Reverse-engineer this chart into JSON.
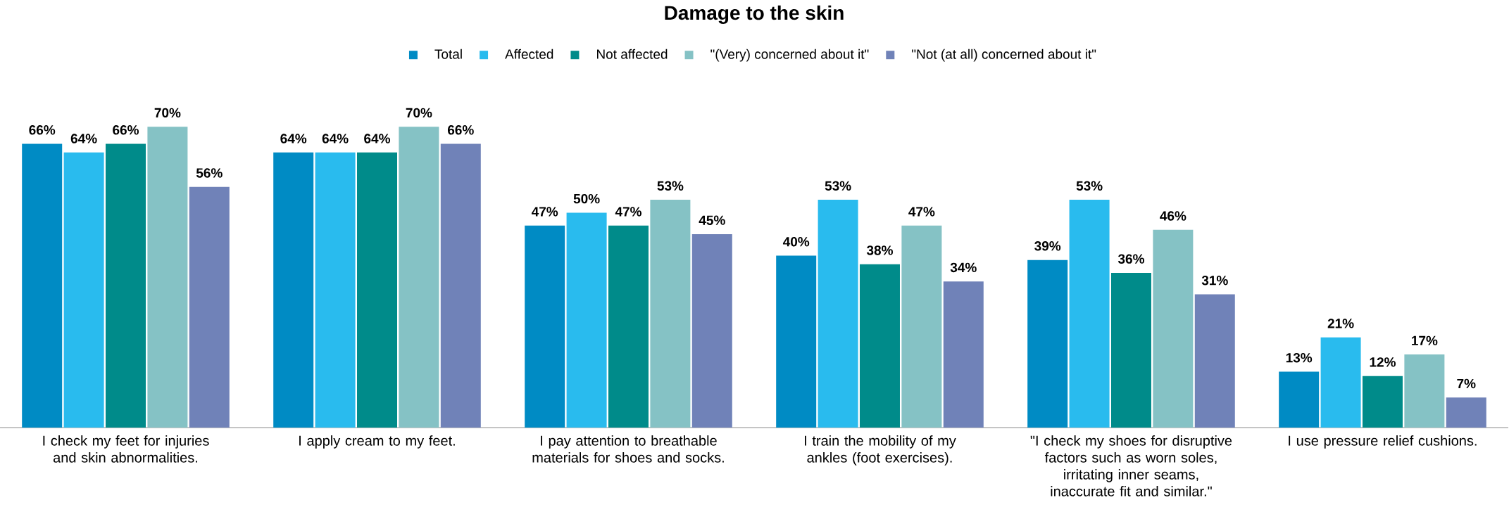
{
  "chart_data": {
    "type": "bar",
    "title": "Damage to the skin",
    "categories": [
      "I check my feet for injuries and skin abnormalities.",
      "I apply cream to my feet.",
      "I pay attention to breathable materials for shoes and socks.",
      "I train the mobility of my ankles (foot exercises).",
      "\"I check my shoes for disruptive factors such as worn soles, irritating inner seams, inaccurate fit and similar.\"",
      "I use pressure relief cushions."
    ],
    "series": [
      {
        "name": "Total",
        "color": "#008bc4",
        "values": [
          66,
          64,
          47,
          40,
          39,
          13
        ],
        "value_labels": [
          "66%",
          "64%",
          "47%",
          "40%",
          "39%",
          "13%"
        ]
      },
      {
        "name": "Affected",
        "color": "#29bbee",
        "values": [
          64,
          64,
          50,
          53,
          53,
          21
        ],
        "value_labels": [
          "64%",
          "64%",
          "50%",
          "53%",
          "53%",
          "21%"
        ]
      },
      {
        "name": "Not affected",
        "color": "#008b8a",
        "values": [
          66,
          64,
          47,
          38,
          36,
          12
        ],
        "value_labels": [
          "66%",
          "64%",
          "47%",
          "38%",
          "36%",
          "12%"
        ]
      },
      {
        "name": "\"(Very) concerned about it\"",
        "color": "#85c2c5",
        "values": [
          70,
          70,
          53,
          47,
          46,
          17
        ],
        "value_labels": [
          "70%",
          "70%",
          "53%",
          "47%",
          "46%",
          "17%"
        ]
      },
      {
        "name": "\"Not (at all) concerned about it\"",
        "color": "#7082b8",
        "values": [
          56,
          66,
          45,
          34,
          31,
          7
        ],
        "value_labels": [
          "56%",
          "66%",
          "45%",
          "34%",
          "31%",
          "7%"
        ]
      }
    ],
    "legend": "top"
  }
}
